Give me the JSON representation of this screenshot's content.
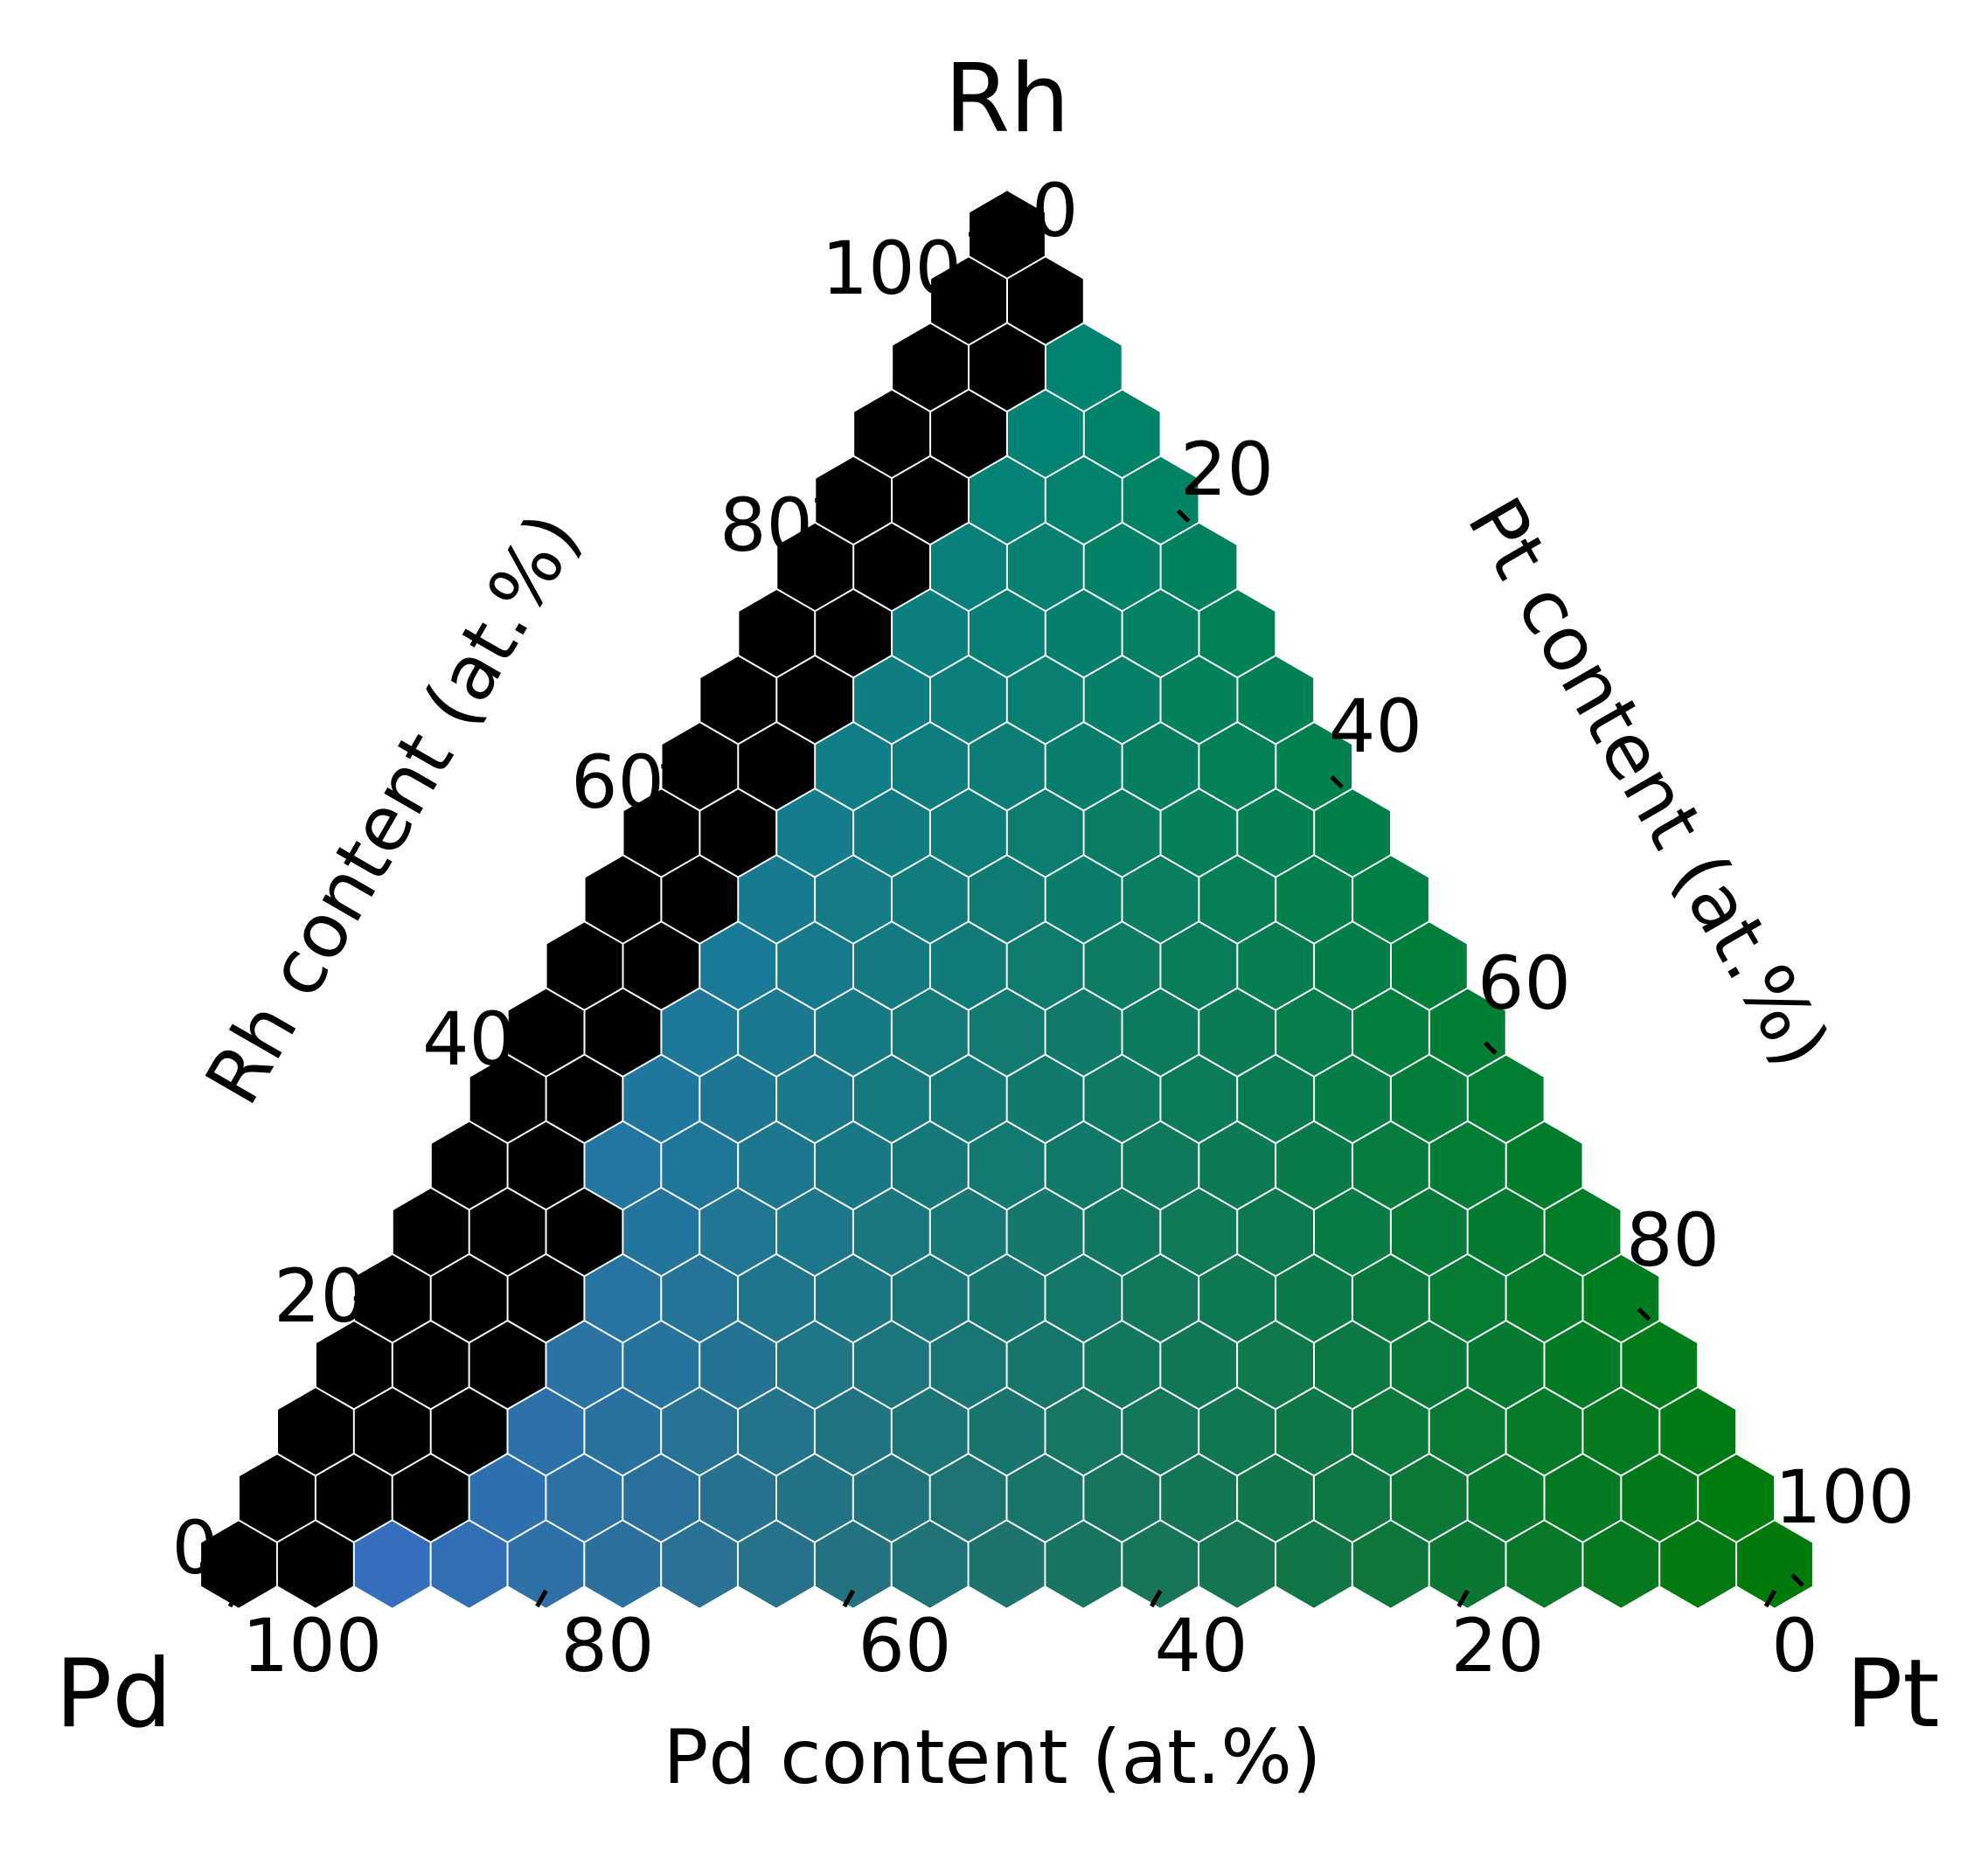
{
  "chart_data": {
    "type": "heatmap",
    "subtype": "ternary-hexbin",
    "corners": {
      "top": "Rh",
      "left": "Pd",
      "right": "Pt"
    },
    "axes": {
      "bottom": {
        "label": "Pd content (at.%)",
        "component": "Pd",
        "ticks": [
          "100",
          "80",
          "60",
          "40",
          "20",
          "0"
        ],
        "range": [
          0,
          100
        ]
      },
      "left": {
        "label": "Rh content (at.%)",
        "component": "Rh",
        "ticks": [
          "0",
          "20",
          "40",
          "60",
          "80",
          "100"
        ],
        "range": [
          0,
          100
        ]
      },
      "right": {
        "label": "Pt content (at.%)",
        "component": "Pt",
        "ticks": [
          "0",
          "20",
          "40",
          "60",
          "80",
          "100"
        ],
        "range": [
          0,
          100
        ]
      }
    },
    "color_encoding": {
      "Pd": "#3a6dd0",
      "Pt": "#007a0a",
      "Rh": "#00857a",
      "missing": "#000000"
    },
    "grid_step_at_pct": 5,
    "no_data_region": "black cells along the Pd–Rh edge (Pt ≈ 0–5 at.%, with a wider band near Rh 5–25 at.%)",
    "grid": false,
    "legend": "none"
  }
}
